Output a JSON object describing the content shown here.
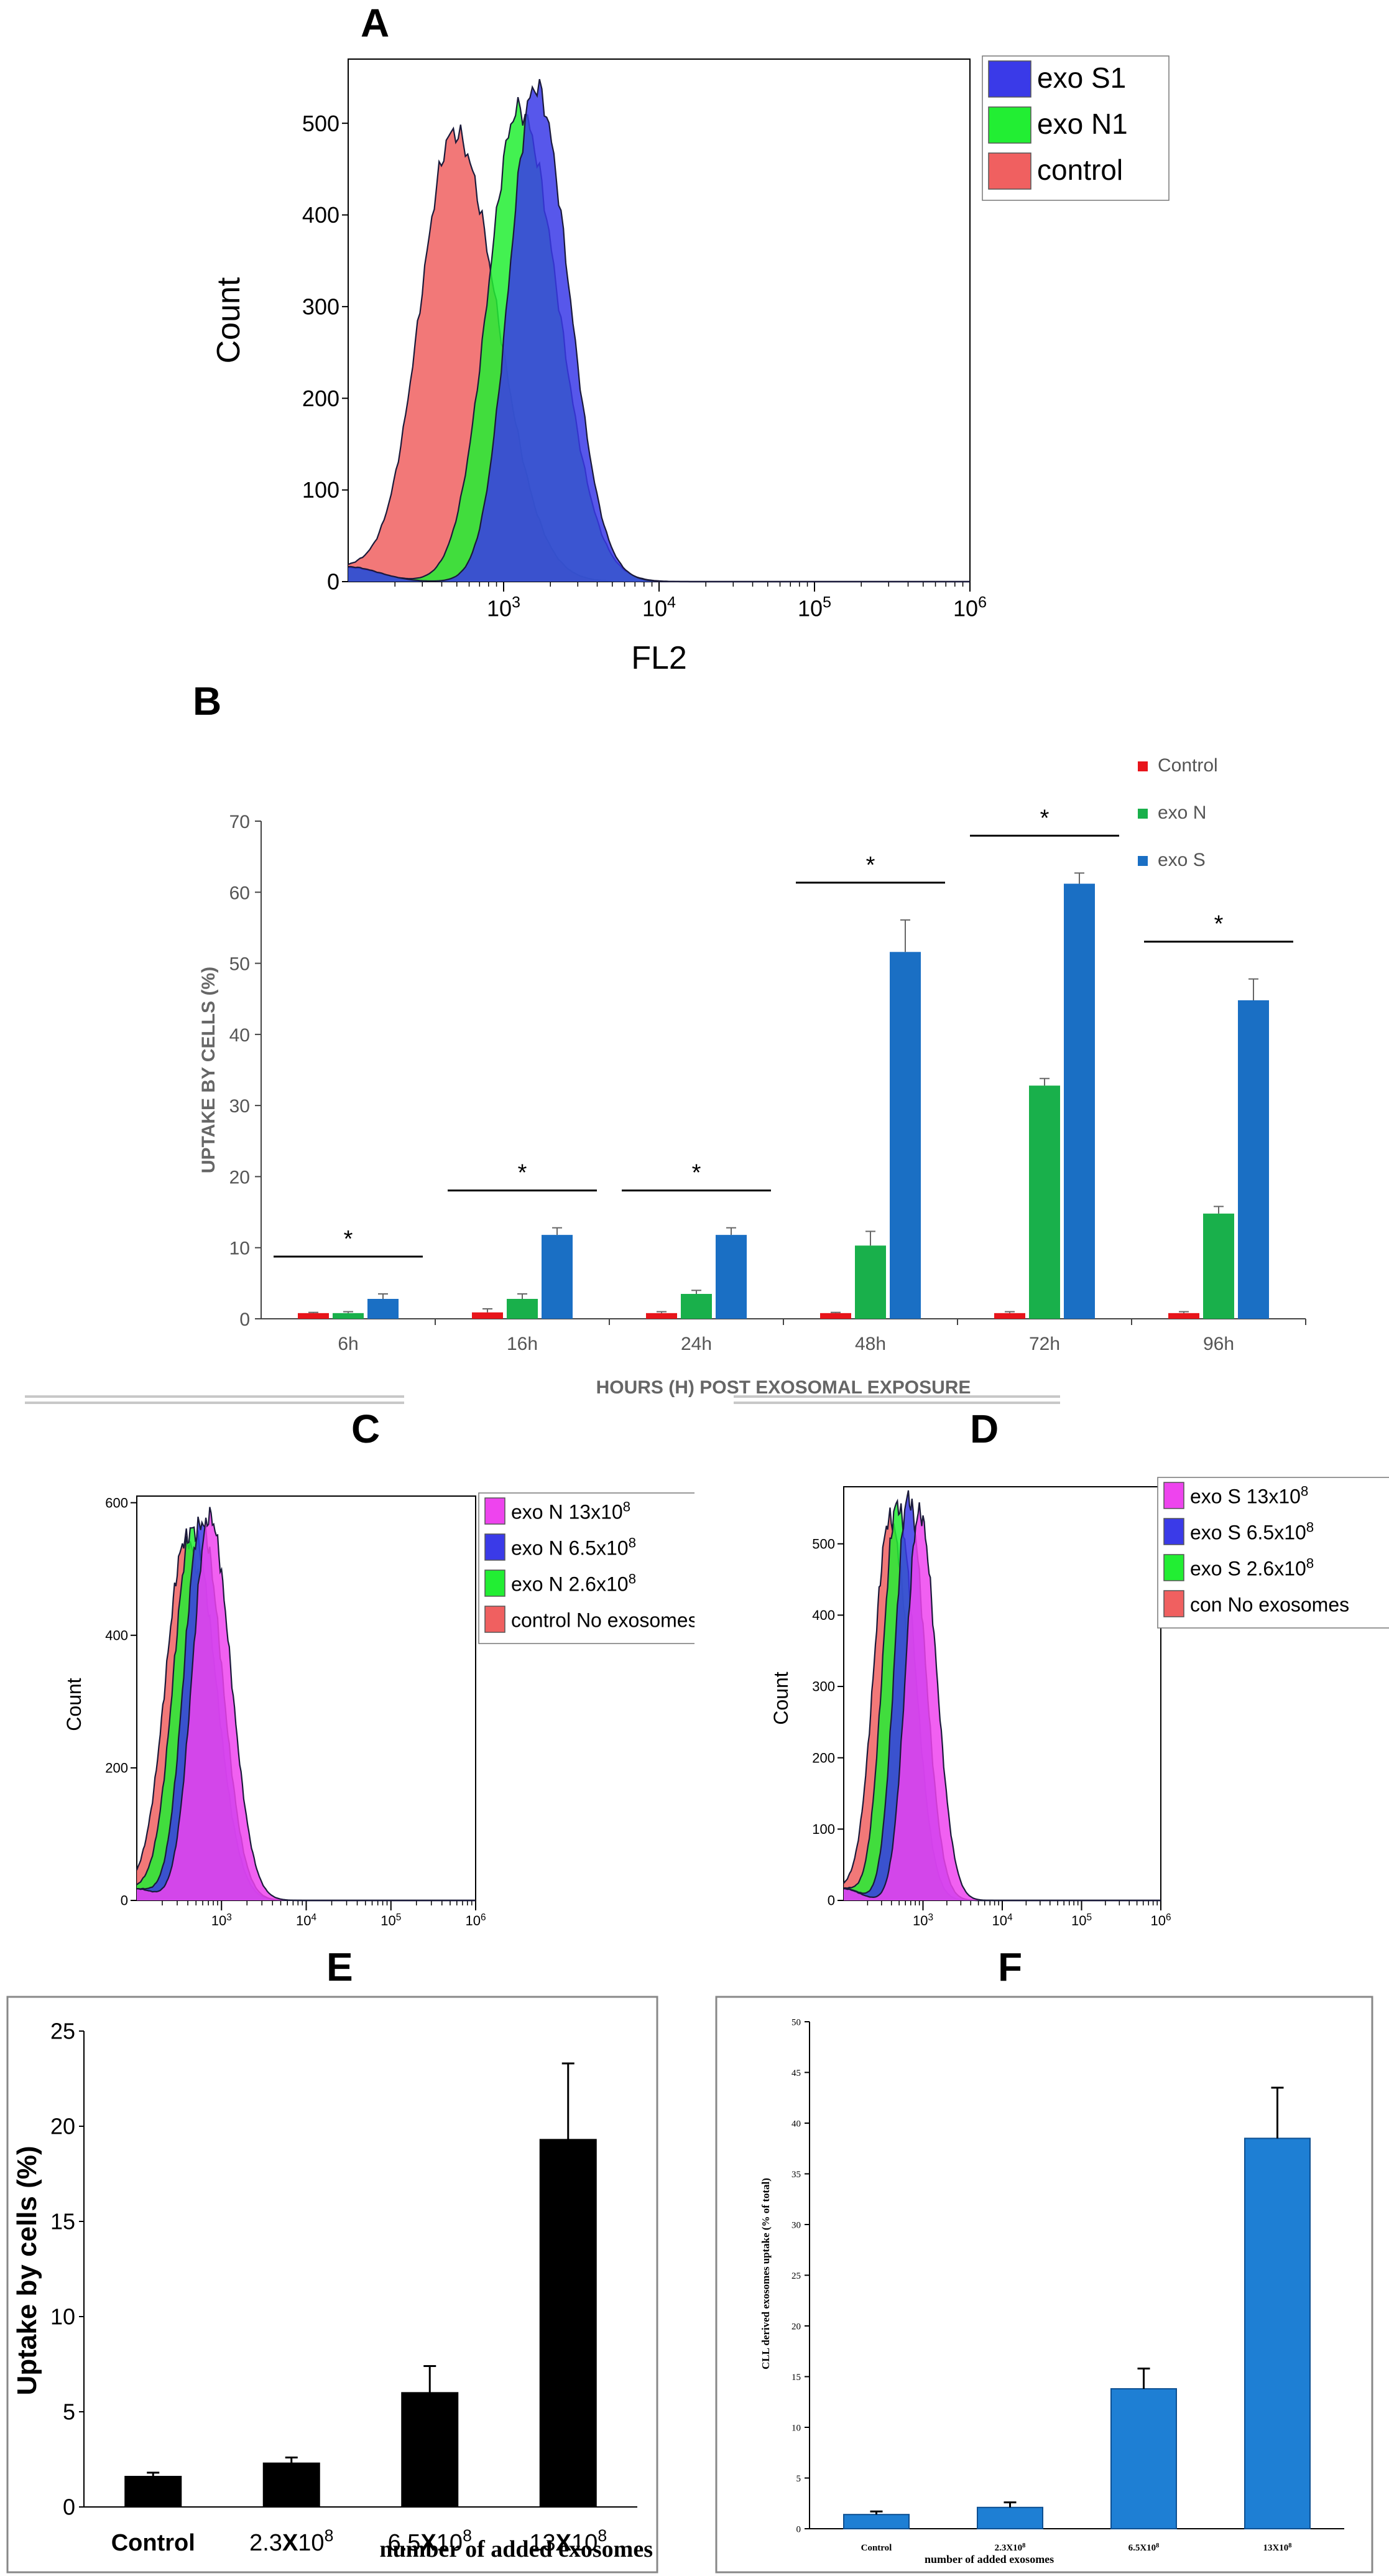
{
  "panel_labels": {
    "A": "A",
    "B": "B",
    "C": "C",
    "D": "D",
    "E": "E",
    "F": "F"
  },
  "chart_data": [
    {
      "id": "A",
      "type": "area",
      "title": "A",
      "xlabel": "FL2",
      "ylabel": "Count",
      "xscale": "log",
      "xlim": [
        100,
        1000000
      ],
      "ylim": [
        0,
        570
      ],
      "yticks": [
        0,
        100,
        200,
        300,
        400,
        500
      ],
      "xticks": [
        {
          "base": "10",
          "exp": "3"
        },
        {
          "base": "10",
          "exp": "4"
        },
        {
          "base": "10",
          "exp": "5"
        },
        {
          "base": "10",
          "exp": "6"
        }
      ],
      "legend_position": "top-right",
      "series": [
        {
          "name": "exo S1",
          "color": "#3a3ae8",
          "peak_x": 1600,
          "peak_y": 540,
          "sigma": 0.17
        },
        {
          "name": "exo N1",
          "color": "#22ee33",
          "peak_x": 1250,
          "peak_y": 515,
          "sigma": 0.2
        },
        {
          "name": "control",
          "color": "#f06060",
          "peak_x": 480,
          "peak_y": 490,
          "sigma": 0.22
        }
      ]
    },
    {
      "id": "B",
      "type": "bar",
      "title": "B",
      "xlabel": "HOURS (H) POST EXOSOMAL EXPOSURE",
      "ylabel": "UPTAKE BY CELLS (%)",
      "ylim": [
        0,
        70
      ],
      "yticks": [
        0,
        10,
        20,
        30,
        40,
        50,
        60,
        70
      ],
      "categories": [
        "6h",
        "16h",
        "24h",
        "48h",
        "72h",
        "96h"
      ],
      "significance": [
        "*",
        "*",
        "*",
        "*",
        "*",
        "*"
      ],
      "legend_position": "top-right",
      "series": [
        {
          "name": "Control",
          "color": "#e8151b",
          "values": [
            0.8,
            0.9,
            0.8,
            0.8,
            0.8,
            0.8
          ],
          "errors": [
            0.1,
            0.5,
            0.2,
            0.1,
            0.2,
            0.2
          ]
        },
        {
          "name": "exo N",
          "color": "#19b04b",
          "values": [
            0.8,
            2.8,
            3.5,
            10.3,
            32.8,
            14.8
          ],
          "errors": [
            0.2,
            0.7,
            0.5,
            2.0,
            1.0,
            1.0
          ]
        },
        {
          "name": "exo S",
          "color": "#1a6fc4",
          "values": [
            2.8,
            11.8,
            11.8,
            51.6,
            61.2,
            44.8
          ],
          "errors": [
            0.7,
            1.0,
            1.0,
            4.5,
            1.5,
            3.0
          ]
        }
      ]
    },
    {
      "id": "C",
      "type": "area",
      "title": "C",
      "ylabel": "Count",
      "xscale": "log",
      "xlim": [
        100,
        1000000
      ],
      "ylim": [
        0,
        610
      ],
      "yticks": [
        0,
        200,
        400,
        600
      ],
      "xticks": [
        {
          "base": "10",
          "exp": "3"
        },
        {
          "base": "10",
          "exp": "4"
        },
        {
          "base": "10",
          "exp": "5"
        },
        {
          "base": "10",
          "exp": "6"
        }
      ],
      "legend_position": "top-right",
      "series": [
        {
          "name": "exo N",
          "detail": "13x10",
          "exp": "8",
          "color": "#ee44ee",
          "peak_x": 720,
          "peak_y": 580,
          "sigma": 0.2
        },
        {
          "name": "exo N",
          "detail": "6.5x10",
          "exp": "8",
          "color": "#3a3ae8",
          "peak_x": 570,
          "peak_y": 570,
          "sigma": 0.2
        },
        {
          "name": "exo N",
          "detail": "2.6x10",
          "exp": "8",
          "color": "#22ee33",
          "peak_x": 450,
          "peak_y": 560,
          "sigma": 0.22
        },
        {
          "name": "control",
          "detail": "No exosomes",
          "exp": "",
          "color": "#f06060",
          "peak_x": 380,
          "peak_y": 545,
          "sigma": 0.24
        }
      ]
    },
    {
      "id": "D",
      "type": "area",
      "title": "D",
      "ylabel": "Count",
      "xscale": "log",
      "xlim": [
        100,
        1000000
      ],
      "ylim": [
        0,
        580
      ],
      "yticks": [
        0,
        100,
        200,
        300,
        400,
        500
      ],
      "xticks": [
        {
          "base": "10",
          "exp": "3"
        },
        {
          "base": "10",
          "exp": "4"
        },
        {
          "base": "10",
          "exp": "5"
        },
        {
          "base": "10",
          "exp": "6"
        }
      ],
      "legend_position": "top-right",
      "series": [
        {
          "name": "exo S",
          "detail": "13x10",
          "exp": "8",
          "color": "#ee44ee",
          "peak_x": 900,
          "peak_y": 545,
          "sigma": 0.17
        },
        {
          "name": "exo S",
          "detail": "6.5x10",
          "exp": "8",
          "color": "#3a3ae8",
          "peak_x": 650,
          "peak_y": 565,
          "sigma": 0.17
        },
        {
          "name": "exo S",
          "detail": "2.6x10",
          "exp": "8",
          "color": "#22ee33",
          "peak_x": 470,
          "peak_y": 555,
          "sigma": 0.18
        },
        {
          "name": "con",
          "detail": "No exosomes",
          "exp": "",
          "color": "#f06060",
          "peak_x": 380,
          "peak_y": 535,
          "sigma": 0.2
        }
      ]
    },
    {
      "id": "E",
      "type": "bar",
      "title": "E",
      "xlabel": "number of added exosomes",
      "ylabel": "Uptake by cells (%)",
      "ylim": [
        0,
        25
      ],
      "yticks": [
        0,
        5,
        10,
        15,
        20,
        25
      ],
      "categories": [
        {
          "base": "Control",
          "mark": "",
          "exp": ""
        },
        {
          "base": "2.3",
          "mark": "X",
          "tail": "10",
          "exp": "8"
        },
        {
          "base": "6.5",
          "mark": "X",
          "tail": "10",
          "exp": "8"
        },
        {
          "base": "13",
          "mark": "X",
          "tail": "10",
          "exp": "8"
        }
      ],
      "series": [
        {
          "name": "uptake",
          "color": "#000000",
          "values": [
            1.6,
            2.3,
            6.0,
            19.3
          ],
          "errors": [
            0.2,
            0.3,
            1.4,
            4.0
          ]
        }
      ]
    },
    {
      "id": "F",
      "type": "bar",
      "title": "F",
      "xlabel": "number of added exosomes",
      "ylabel": "CLL derived exosomes uptake (% of total)",
      "ylim": [
        0,
        50
      ],
      "yticks": [
        0,
        5,
        10,
        15,
        20,
        25,
        30,
        35,
        40,
        45,
        50
      ],
      "categories": [
        {
          "base": "Control",
          "mark": "",
          "exp": ""
        },
        {
          "base": "2.3X10",
          "mark": "",
          "exp": "8"
        },
        {
          "base": "6.5X10",
          "mark": "",
          "exp": "8"
        },
        {
          "base": "13X10",
          "mark": "",
          "exp": "8"
        }
      ],
      "series": [
        {
          "name": "uptake",
          "color": "#1e7fd4",
          "values": [
            1.4,
            2.1,
            13.8,
            38.5
          ],
          "errors": [
            0.3,
            0.5,
            2.0,
            5.0
          ]
        }
      ]
    }
  ]
}
